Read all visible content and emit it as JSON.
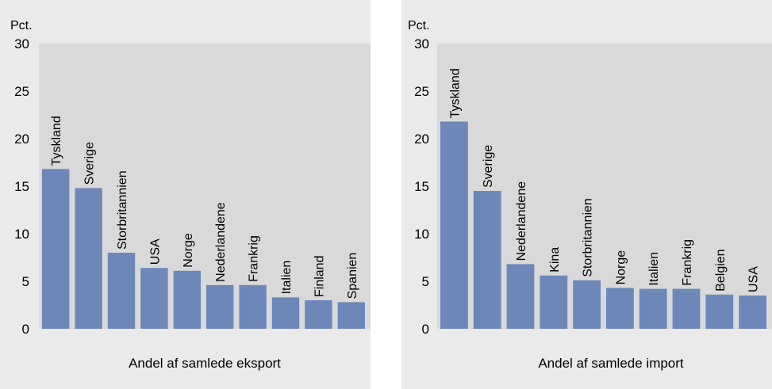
{
  "chart_data": [
    {
      "type": "bar",
      "unit_label": "Pct.",
      "xlabel": "Andel af samlede eksport",
      "ylim": [
        0,
        30
      ],
      "yticks": [
        0,
        5,
        10,
        15,
        20,
        25,
        30
      ],
      "tick_labels": [
        "0",
        "5",
        "10",
        "15",
        "20",
        "25",
        "30"
      ],
      "grid": false,
      "bar_color": "#6d87b9",
      "plot_bg": "#d9d9d9",
      "categories": [
        "Tyskland",
        "Sverige",
        "Storbritannien",
        "USA",
        "Norge",
        "Nederlandene",
        "Frankrig",
        "Italien",
        "Finland",
        "Spanien"
      ],
      "values": [
        16.8,
        14.8,
        8.0,
        6.4,
        6.1,
        4.6,
        4.6,
        3.3,
        3.0,
        2.8
      ]
    },
    {
      "type": "bar",
      "unit_label": "Pct.",
      "xlabel": "Andel af samlede import",
      "ylim": [
        0,
        30
      ],
      "yticks": [
        0,
        5,
        10,
        15,
        20,
        25,
        30
      ],
      "tick_labels": [
        "0",
        "5",
        "10",
        "15",
        "20",
        "25",
        "30"
      ],
      "grid": false,
      "bar_color": "#6d87b9",
      "plot_bg": "#d9d9d9",
      "categories": [
        "Tyskland",
        "Sverige",
        "Nederlandene",
        "Kina",
        "Storbritannien",
        "Norge",
        "Italien",
        "Frankrig",
        "Belgien",
        "USA"
      ],
      "values": [
        21.8,
        14.5,
        6.8,
        5.6,
        5.1,
        4.3,
        4.2,
        4.2,
        3.6,
        3.5
      ]
    }
  ]
}
